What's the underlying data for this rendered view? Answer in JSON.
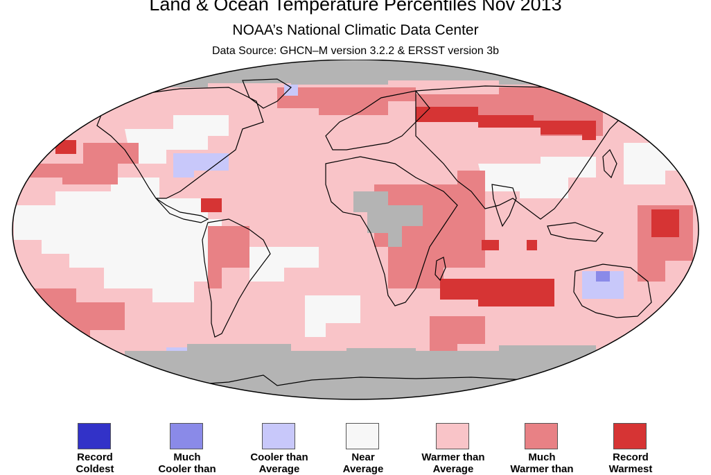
{
  "title": "Land & Ocean Temperature Percentiles Nov 2013",
  "subtitle": "NOAA’s National Climatic Data Center",
  "source": "Data Source: GHCN–M version 3.2.2 & ERSST version 3b",
  "legend": [
    {
      "line1": "Record",
      "line2": "Coldest",
      "color": "#3232c8"
    },
    {
      "line1": "Much",
      "line2": "Cooler than",
      "color": "#8a8ae8"
    },
    {
      "line1": "Cooler than",
      "line2": "Average",
      "color": "#c8c8fa"
    },
    {
      "line1": "Near",
      "line2": "Average",
      "color": "#f7f7f7"
    },
    {
      "line1": "Warmer than",
      "line2": "Average",
      "color": "#f9c4c8"
    },
    {
      "line1": "Much",
      "line2": "Warmer than",
      "color": "#e88185"
    },
    {
      "line1": "Record",
      "line2": "Warmest",
      "color": "#d63434"
    }
  ],
  "colors": {
    "missing": "#b4b4b4",
    "land_outline": "#000000",
    "map_outline": "#000000"
  }
}
